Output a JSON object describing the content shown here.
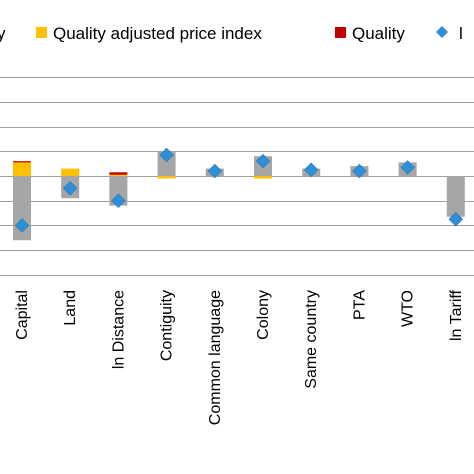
{
  "chart_data": {
    "type": "bar",
    "stacked": true,
    "categories": [
      "Capital",
      "Land",
      "ln Distance",
      "Contiguity",
      "Common language",
      "Colony",
      "Same country",
      "PTA",
      "WTO",
      "ln Tariff"
    ],
    "series": [
      {
        "name": "",
        "kind": "bar",
        "color": "#a6a6a6",
        "values": [
          -0.52,
          -0.18,
          -0.24,
          0.2,
          0.06,
          0.16,
          0.06,
          0.08,
          0.11,
          -0.33
        ]
      },
      {
        "name": "Quality adjusted price index",
        "kind": "bar",
        "color": "#ffc000",
        "values": [
          0.11,
          0.06,
          0.01,
          -0.02,
          0.0,
          -0.02,
          0.0,
          0.0,
          0.0,
          0.0
        ]
      },
      {
        "name": "Quality",
        "kind": "bar",
        "color": "#c00000",
        "values": [
          0.01,
          0.0,
          0.02,
          0.0,
          0.0,
          0.0,
          0.0,
          0.0,
          0.0,
          0.0
        ]
      },
      {
        "name": "",
        "kind": "marker",
        "color": "#2e8ed6",
        "values": [
          -0.4,
          -0.1,
          -0.2,
          0.17,
          0.04,
          0.12,
          0.05,
          0.04,
          0.07,
          -0.35
        ]
      }
    ],
    "legend": {
      "placement": "top",
      "items": [
        {
          "label": "y",
          "color": "#a6a6a6",
          "shape": "square"
        },
        {
          "label": "Quality adjusted price index",
          "color": "#ffc000",
          "shape": "square"
        },
        {
          "label": "Quality",
          "color": "#c00000",
          "shape": "square"
        },
        {
          "label": "l",
          "color": "#2e8ed6",
          "shape": "diamond"
        }
      ]
    },
    "ylim": [
      -0.8,
      0.8
    ],
    "yticks": [
      -0.8,
      -0.6,
      -0.4,
      -0.2,
      0,
      0.2,
      0.4,
      0.6,
      0.8
    ],
    "grid": true
  }
}
